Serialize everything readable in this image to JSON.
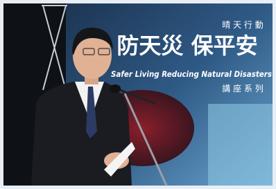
{
  "banner": {
    "small_title": "晴 天 行 動",
    "main_title": "防天災 保平安",
    "subtitle": "Safer Living Reducing Natural Disasters",
    "series": "講 座 系 列"
  }
}
